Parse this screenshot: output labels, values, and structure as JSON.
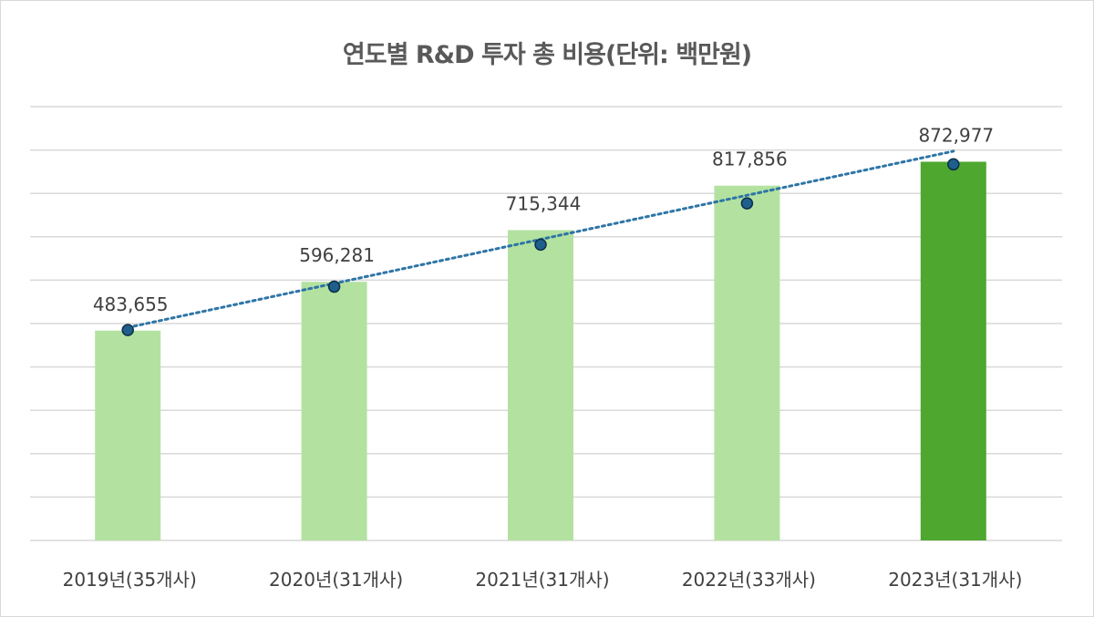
{
  "chart_data": {
    "type": "bar",
    "title": "연도별 R&D 투자 총 비용(단위: 백만원)",
    "categories": [
      "2019년(35개사)",
      "2020년(31개사)",
      "2021년(31개사)",
      "2022년(33개사)",
      "2023년(31개사)"
    ],
    "values": [
      483655,
      596281,
      715344,
      817856,
      872977
    ],
    "data_labels": [
      "483,655",
      "596,281",
      "715,344",
      "817,856",
      "872,977"
    ],
    "marker_values": [
      485000,
      585000,
      682000,
      777000,
      867000
    ],
    "trendline": "linear",
    "ylim": [
      0,
      1000000
    ],
    "ytick_step": 100000,
    "grid": true,
    "legend": "none",
    "xlabel": "",
    "ylabel": "",
    "colors": {
      "bar": "#b3e2a0",
      "highlight_bar": "#4ea72e",
      "marker": "#1f5f8b",
      "trendline": "#2e75a6",
      "grid": "#d9d9d9"
    },
    "highlight_index": 4
  }
}
